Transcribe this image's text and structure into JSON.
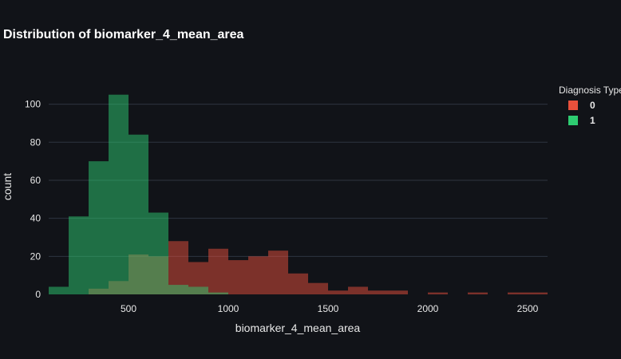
{
  "chart_data": {
    "type": "bar",
    "title": "Distribution of biomarker_4_mean_area",
    "xlabel": "biomarker_4_mean_area",
    "ylabel": "count",
    "xlim": [
      100,
      2600
    ],
    "ylim": [
      0,
      112
    ],
    "xticks": [
      500,
      1000,
      1500,
      2000,
      2500
    ],
    "yticks": [
      0,
      20,
      40,
      60,
      80,
      100
    ],
    "bin_width": 100,
    "barmode": "overlay",
    "legend_title": "Diagnosis Type",
    "legend_position": "top-right",
    "grid": true,
    "series": [
      {
        "name": "0",
        "color": "#e8503c",
        "bins": [
          {
            "x0": 300,
            "x1": 400,
            "count": 3
          },
          {
            "x0": 400,
            "x1": 500,
            "count": 7
          },
          {
            "x0": 500,
            "x1": 600,
            "count": 21
          },
          {
            "x0": 600,
            "x1": 700,
            "count": 20
          },
          {
            "x0": 700,
            "x1": 800,
            "count": 28
          },
          {
            "x0": 800,
            "x1": 900,
            "count": 17
          },
          {
            "x0": 900,
            "x1": 1000,
            "count": 24
          },
          {
            "x0": 1000,
            "x1": 1100,
            "count": 18
          },
          {
            "x0": 1100,
            "x1": 1200,
            "count": 20
          },
          {
            "x0": 1200,
            "x1": 1300,
            "count": 23
          },
          {
            "x0": 1300,
            "x1": 1400,
            "count": 11
          },
          {
            "x0": 1400,
            "x1": 1500,
            "count": 6
          },
          {
            "x0": 1500,
            "x1": 1600,
            "count": 2
          },
          {
            "x0": 1600,
            "x1": 1700,
            "count": 4
          },
          {
            "x0": 1700,
            "x1": 1800,
            "count": 2
          },
          {
            "x0": 1800,
            "x1": 1900,
            "count": 2
          },
          {
            "x0": 2000,
            "x1": 2100,
            "count": 1
          },
          {
            "x0": 2200,
            "x1": 2300,
            "count": 1
          },
          {
            "x0": 2400,
            "x1": 2500,
            "count": 1
          },
          {
            "x0": 2500,
            "x1": 2600,
            "count": 1
          }
        ]
      },
      {
        "name": "1",
        "color": "#2ecc71",
        "bins": [
          {
            "x0": 100,
            "x1": 200,
            "count": 4
          },
          {
            "x0": 200,
            "x1": 300,
            "count": 41
          },
          {
            "x0": 300,
            "x1": 400,
            "count": 70
          },
          {
            "x0": 400,
            "x1": 500,
            "count": 105
          },
          {
            "x0": 500,
            "x1": 600,
            "count": 84
          },
          {
            "x0": 600,
            "x1": 700,
            "count": 43
          },
          {
            "x0": 700,
            "x1": 800,
            "count": 5
          },
          {
            "x0": 800,
            "x1": 900,
            "count": 4
          },
          {
            "x0": 900,
            "x1": 1000,
            "count": 1
          }
        ]
      }
    ]
  }
}
